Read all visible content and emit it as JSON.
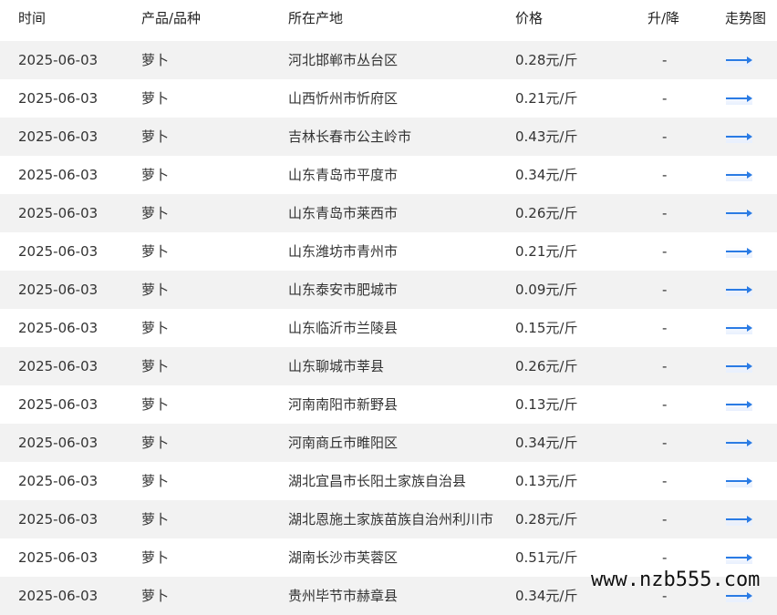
{
  "header": {
    "date": "时间",
    "product": "产品/品种",
    "location": "所在产地",
    "price": "价格",
    "change": "升/降",
    "trend": "走势图"
  },
  "trend_icon": "arrow-right-icon",
  "accent_color": "#2a7be4",
  "rows": [
    {
      "date": "2025-06-03",
      "product": "萝卜",
      "location": "河北邯郸市丛台区",
      "price": "0.28元/斤",
      "change": "-"
    },
    {
      "date": "2025-06-03",
      "product": "萝卜",
      "location": "山西忻州市忻府区",
      "price": "0.21元/斤",
      "change": "-"
    },
    {
      "date": "2025-06-03",
      "product": "萝卜",
      "location": "吉林长春市公主岭市",
      "price": "0.43元/斤",
      "change": "-"
    },
    {
      "date": "2025-06-03",
      "product": "萝卜",
      "location": "山东青岛市平度市",
      "price": "0.34元/斤",
      "change": "-"
    },
    {
      "date": "2025-06-03",
      "product": "萝卜",
      "location": "山东青岛市莱西市",
      "price": "0.26元/斤",
      "change": "-"
    },
    {
      "date": "2025-06-03",
      "product": "萝卜",
      "location": "山东潍坊市青州市",
      "price": "0.21元/斤",
      "change": "-"
    },
    {
      "date": "2025-06-03",
      "product": "萝卜",
      "location": "山东泰安市肥城市",
      "price": "0.09元/斤",
      "change": "-"
    },
    {
      "date": "2025-06-03",
      "product": "萝卜",
      "location": "山东临沂市兰陵县",
      "price": "0.15元/斤",
      "change": "-"
    },
    {
      "date": "2025-06-03",
      "product": "萝卜",
      "location": "山东聊城市莘县",
      "price": "0.26元/斤",
      "change": "-"
    },
    {
      "date": "2025-06-03",
      "product": "萝卜",
      "location": "河南南阳市新野县",
      "price": "0.13元/斤",
      "change": "-"
    },
    {
      "date": "2025-06-03",
      "product": "萝卜",
      "location": "河南商丘市睢阳区",
      "price": "0.34元/斤",
      "change": "-"
    },
    {
      "date": "2025-06-03",
      "product": "萝卜",
      "location": "湖北宜昌市长阳土家族自治县",
      "price": "0.13元/斤",
      "change": "-"
    },
    {
      "date": "2025-06-03",
      "product": "萝卜",
      "location": "湖北恩施土家族苗族自治州利川市",
      "price": "0.28元/斤",
      "change": "-"
    },
    {
      "date": "2025-06-03",
      "product": "萝卜",
      "location": "湖南长沙市芙蓉区",
      "price": "0.51元/斤",
      "change": "-"
    },
    {
      "date": "2025-06-03",
      "product": "萝卜",
      "location": "贵州毕节市赫章县",
      "price": "0.34元/斤",
      "change": "-"
    }
  ],
  "watermark": "www.nzb555.com"
}
